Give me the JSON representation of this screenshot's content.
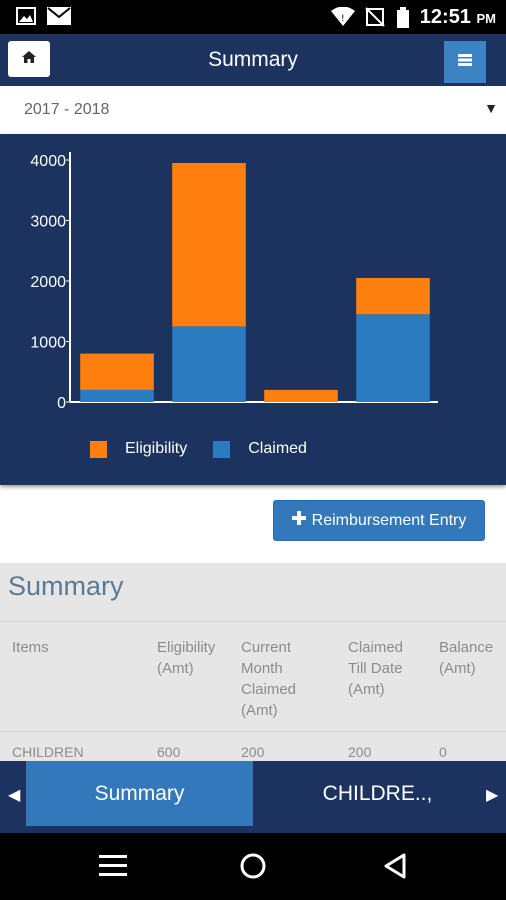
{
  "status_bar": {
    "time": "12:51",
    "ampm": "PM"
  },
  "app_bar": {
    "title": "Summary"
  },
  "year_select": {
    "value": "2017 - 2018"
  },
  "chart_data": {
    "type": "bar",
    "stacked": true,
    "categories": [
      "",
      "",
      "",
      ""
    ],
    "series": [
      {
        "name": "Eligibility",
        "color": "#ff7f0e",
        "values": [
          600,
          2700,
          200,
          600
        ]
      },
      {
        "name": "Claimed",
        "color": "#2b7bc0",
        "values": [
          200,
          1250,
          0,
          1450
        ]
      }
    ],
    "yticks": [
      "0",
      "1000",
      "2000",
      "3000",
      "4000"
    ],
    "ylim": [
      0,
      4000
    ],
    "legend": "bottom"
  },
  "actions": {
    "reimbursement_label": "Reimbursement Entry"
  },
  "summary": {
    "heading": "Summary",
    "columns": [
      "Items",
      "Eligibility (Amt)",
      "Current Month Claimed (Amt)",
      "Claimed Till Date (Amt)",
      "Balance (Amt)"
    ],
    "rows": [
      {
        "item": "CHILDREN",
        "eligibility": "600",
        "current": "200",
        "till_date": "200",
        "balance": "0"
      }
    ]
  },
  "tabs": [
    {
      "label": "Summary",
      "active": true
    },
    {
      "label": "CHILDRE..,"
    }
  ]
}
